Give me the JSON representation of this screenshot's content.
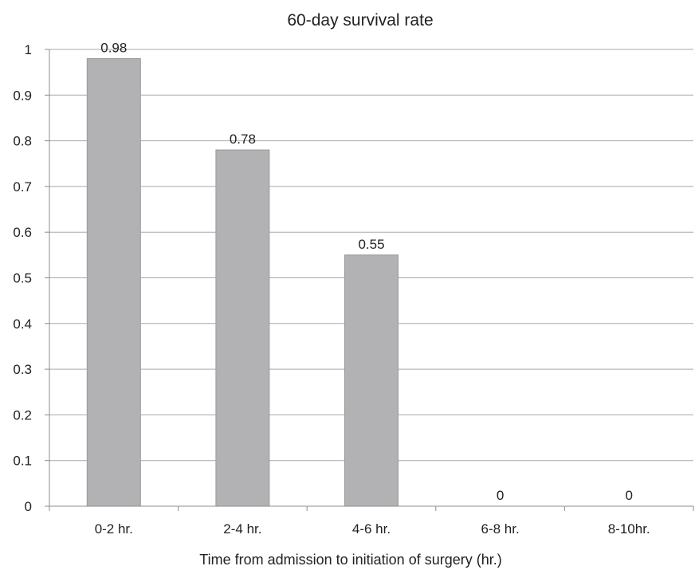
{
  "chart_data": {
    "type": "bar",
    "title": "60-day survival rate",
    "xlabel": "Time from admission to initiation of surgery (hr.)",
    "ylabel": "",
    "categories": [
      "0-2 hr.",
      "2-4 hr.",
      "4-6 hr.",
      "6-8 hr.",
      "8-10hr."
    ],
    "values": [
      0.98,
      0.78,
      0.55,
      0,
      0
    ],
    "data_labels": [
      "0.98",
      "0.78",
      "0.55",
      "0",
      "0"
    ],
    "ylim": [
      0,
      1
    ],
    "yticks": [
      0,
      0.1,
      0.2,
      0.3,
      0.4,
      0.5,
      0.6,
      0.7,
      0.8,
      0.9,
      1
    ],
    "ytick_labels": [
      "0",
      "0.1",
      "0.2",
      "0.3",
      "0.4",
      "0.5",
      "0.6",
      "0.7",
      "0.8",
      "0.9",
      "1"
    ],
    "grid": true,
    "legend": "none",
    "colors": {
      "bar_fill": "#b2b2b4",
      "bar_edge": "#9a9a9c",
      "grid": "#a8a8a8",
      "axis": "#8c8c8c"
    }
  }
}
